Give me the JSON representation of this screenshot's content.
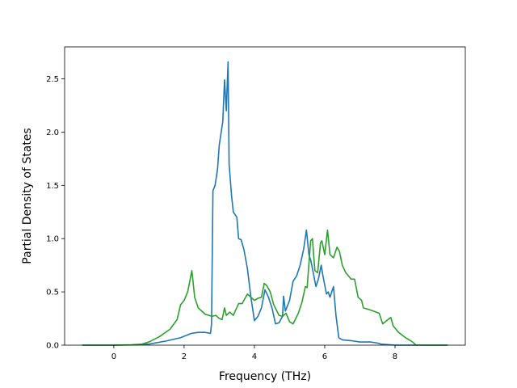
{
  "chart_data": {
    "type": "line",
    "xlabel": "Frequency (THz)",
    "ylabel": "Partial Density of States",
    "xlim": [
      -1.4,
      10.0
    ],
    "ylim": [
      0,
      2.8
    ],
    "xticks": [
      0,
      2,
      4,
      6,
      8
    ],
    "xtick_labels": [
      "0",
      "2",
      "4",
      "6",
      "8"
    ],
    "yticks": [
      0.0,
      0.5,
      1.0,
      1.5,
      2.0,
      2.5
    ],
    "ytick_labels": [
      "0.0",
      "0.5",
      "1.0",
      "1.5",
      "2.0",
      "2.5"
    ],
    "grid": false,
    "series": [
      {
        "color": "#1f77b4",
        "points": [
          [
            -0.9,
            0.0
          ],
          [
            0.0,
            0.0
          ],
          [
            0.5,
            0.002
          ],
          [
            1.0,
            0.01
          ],
          [
            1.5,
            0.04
          ],
          [
            1.9,
            0.07
          ],
          [
            2.2,
            0.11
          ],
          [
            2.4,
            0.12
          ],
          [
            2.6,
            0.12
          ],
          [
            2.75,
            0.11
          ],
          [
            2.78,
            0.2
          ],
          [
            2.82,
            1.45
          ],
          [
            2.88,
            1.5
          ],
          [
            2.95,
            1.65
          ],
          [
            3.0,
            1.88
          ],
          [
            3.1,
            2.1
          ],
          [
            3.15,
            2.49
          ],
          [
            3.2,
            2.2
          ],
          [
            3.25,
            2.66
          ],
          [
            3.28,
            1.7
          ],
          [
            3.35,
            1.4
          ],
          [
            3.4,
            1.25
          ],
          [
            3.5,
            1.2
          ],
          [
            3.55,
            1.0
          ],
          [
            3.62,
            0.99
          ],
          [
            3.7,
            0.9
          ],
          [
            3.8,
            0.72
          ],
          [
            3.9,
            0.45
          ],
          [
            4.0,
            0.23
          ],
          [
            4.1,
            0.27
          ],
          [
            4.2,
            0.35
          ],
          [
            4.3,
            0.52
          ],
          [
            4.4,
            0.45
          ],
          [
            4.5,
            0.35
          ],
          [
            4.6,
            0.2
          ],
          [
            4.7,
            0.21
          ],
          [
            4.8,
            0.27
          ],
          [
            4.83,
            0.46
          ],
          [
            4.88,
            0.32
          ],
          [
            5.0,
            0.42
          ],
          [
            5.1,
            0.6
          ],
          [
            5.2,
            0.65
          ],
          [
            5.3,
            0.75
          ],
          [
            5.4,
            0.9
          ],
          [
            5.48,
            1.08
          ],
          [
            5.55,
            0.85
          ],
          [
            5.6,
            0.8
          ],
          [
            5.65,
            0.72
          ],
          [
            5.75,
            0.55
          ],
          [
            5.82,
            0.62
          ],
          [
            5.9,
            0.75
          ],
          [
            5.95,
            0.65
          ],
          [
            6.05,
            0.48
          ],
          [
            6.1,
            0.5
          ],
          [
            6.15,
            0.45
          ],
          [
            6.25,
            0.55
          ],
          [
            6.32,
            0.28
          ],
          [
            6.4,
            0.07
          ],
          [
            6.5,
            0.05
          ],
          [
            6.8,
            0.04
          ],
          [
            7.0,
            0.03
          ],
          [
            7.3,
            0.03
          ],
          [
            7.5,
            0.02
          ],
          [
            7.6,
            0.01
          ],
          [
            8.0,
            0.0
          ],
          [
            9.5,
            0.0
          ]
        ]
      },
      {
        "color": "#2ca02c",
        "points": [
          [
            -0.9,
            0.0
          ],
          [
            0.0,
            0.0
          ],
          [
            0.5,
            0.003
          ],
          [
            0.8,
            0.01
          ],
          [
            1.0,
            0.03
          ],
          [
            1.3,
            0.08
          ],
          [
            1.6,
            0.15
          ],
          [
            1.8,
            0.24
          ],
          [
            1.9,
            0.38
          ],
          [
            2.0,
            0.42
          ],
          [
            2.1,
            0.5
          ],
          [
            2.15,
            0.58
          ],
          [
            2.22,
            0.7
          ],
          [
            2.3,
            0.45
          ],
          [
            2.4,
            0.35
          ],
          [
            2.6,
            0.29
          ],
          [
            2.8,
            0.27
          ],
          [
            2.9,
            0.28
          ],
          [
            3.0,
            0.25
          ],
          [
            3.08,
            0.24
          ],
          [
            3.15,
            0.35
          ],
          [
            3.2,
            0.28
          ],
          [
            3.3,
            0.31
          ],
          [
            3.4,
            0.28
          ],
          [
            3.55,
            0.39
          ],
          [
            3.65,
            0.39
          ],
          [
            3.8,
            0.48
          ],
          [
            3.9,
            0.45
          ],
          [
            4.0,
            0.42
          ],
          [
            4.1,
            0.44
          ],
          [
            4.2,
            0.45
          ],
          [
            4.28,
            0.58
          ],
          [
            4.35,
            0.56
          ],
          [
            4.45,
            0.5
          ],
          [
            4.55,
            0.38
          ],
          [
            4.7,
            0.28
          ],
          [
            4.8,
            0.27
          ],
          [
            4.9,
            0.3
          ],
          [
            5.0,
            0.22
          ],
          [
            5.1,
            0.2
          ],
          [
            5.25,
            0.3
          ],
          [
            5.35,
            0.4
          ],
          [
            5.45,
            0.55
          ],
          [
            5.5,
            0.54
          ],
          [
            5.6,
            0.98
          ],
          [
            5.65,
            1.0
          ],
          [
            5.72,
            0.7
          ],
          [
            5.8,
            0.68
          ],
          [
            5.88,
            0.96
          ],
          [
            5.92,
            0.98
          ],
          [
            6.0,
            0.85
          ],
          [
            6.08,
            1.08
          ],
          [
            6.15,
            0.85
          ],
          [
            6.25,
            0.82
          ],
          [
            6.35,
            0.92
          ],
          [
            6.42,
            0.88
          ],
          [
            6.5,
            0.75
          ],
          [
            6.6,
            0.68
          ],
          [
            6.75,
            0.62
          ],
          [
            6.85,
            0.62
          ],
          [
            6.95,
            0.45
          ],
          [
            7.05,
            0.42
          ],
          [
            7.1,
            0.35
          ],
          [
            7.3,
            0.33
          ],
          [
            7.55,
            0.3
          ],
          [
            7.65,
            0.2
          ],
          [
            7.8,
            0.24
          ],
          [
            7.88,
            0.26
          ],
          [
            7.95,
            0.18
          ],
          [
            8.1,
            0.12
          ],
          [
            8.3,
            0.07
          ],
          [
            8.5,
            0.03
          ],
          [
            8.6,
            0.0
          ],
          [
            9.5,
            0.0
          ]
        ]
      }
    ]
  }
}
